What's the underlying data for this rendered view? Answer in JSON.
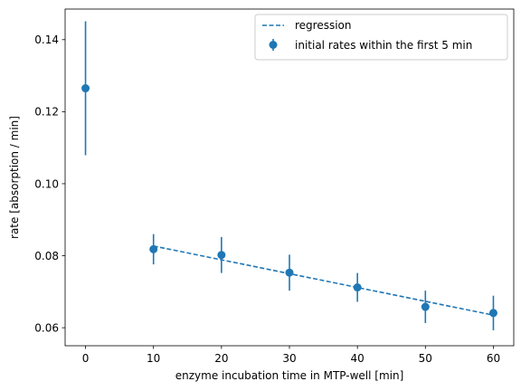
{
  "chart_data": {
    "type": "scatter",
    "xlabel": "enzyme incubation time in MTP-well [min]",
    "ylabel": "rate [absorption / min]",
    "xlim": [
      -3,
      63
    ],
    "ylim": [
      0.055,
      0.1485
    ],
    "xticks": [
      0,
      10,
      20,
      30,
      40,
      50,
      60
    ],
    "yticks": [
      0.06,
      0.08,
      0.1,
      0.12,
      0.14
    ],
    "x_tick_labels": [
      "0",
      "10",
      "20",
      "30",
      "40",
      "50",
      "60"
    ],
    "y_tick_labels": [
      "0.06",
      "0.08",
      "0.10",
      "0.12",
      "0.14"
    ],
    "grid": false,
    "legend_position": "top-right",
    "color": "#1f77b4",
    "series": [
      {
        "name": "regression",
        "kind": "line",
        "style": "dashed",
        "x": [
          10,
          60
        ],
        "y": [
          0.0827,
          0.0635
        ]
      },
      {
        "name": "initial rates within the first 5 min",
        "kind": "errorbar",
        "x": [
          0,
          10,
          20,
          30,
          40,
          50,
          60
        ],
        "y": [
          0.1265,
          0.0818,
          0.0802,
          0.0753,
          0.0712,
          0.0658,
          0.0641
        ],
        "yerr": [
          0.0186,
          0.0042,
          0.005,
          0.005,
          0.004,
          0.0045,
          0.0048
        ]
      }
    ]
  }
}
